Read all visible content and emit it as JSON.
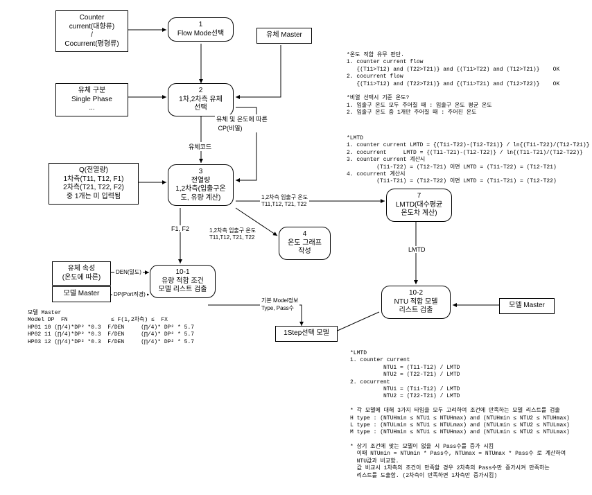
{
  "nodes": {
    "box_input_flow": "Counter\ncurrent(대향류)\n/\nCocurrent(평형류)",
    "n1": "1\nFlow Mode선택",
    "box_master_fluid": "유체 Master",
    "box_input_phase": "유체 구분\nSingle Phase\n...",
    "n2": "2\n1차,2차측 유체\n선택",
    "box_input_Q": "Q(전열량)\n1차측(T11, T12, F1)\n2차측(T21, T22, F2)\n중 1개는 미 입력됨",
    "n3": "3\n전열량\n1,2차측(입출구온\n도, 유량 계산)",
    "n4": "4\n온도 그래프\n작성",
    "n7": "7\nLMTD(대수평균\n온도차 계산)",
    "box_attr": "유체 속성\n(온도에 따른)",
    "box_model_master_left": "모델 Master",
    "n10_1": "10-1\n유량 적합 조건\n모델 리스트 검출",
    "n10_2": "10-2\nNTU 적합 모델\n리스트 검출",
    "box_model_master_right": "모델 Master",
    "box_1step": "1Step선택 모델"
  },
  "labels": {
    "lbl_cp": "유체 및 온도에 따른\n CP(비열)",
    "lbl_fluidcode": "유체코드",
    "lbl_T_right": "1,2차측 입출구 온도\nT11,T12, T21, T22",
    "lbl_F1F2": "F1, F2",
    "lbl_T_down": "1,2차측 입출구 온도\nT11,T12, T21, T22",
    "lbl_LMTD": "LMTD",
    "lbl_DEN": "DEN(밀도)",
    "lbl_DP": "DP(Port직경)",
    "lbl_modeltype": "기본 Model정보\nType, Pass수"
  },
  "annotations": {
    "a_flow": "*온도 적합 유무 판단.\n1. counter current flow\n   {(T11>T12) and (T22>T21)} and {(T11>T22) and (T12>T21)}    OK\n2. cocurrent flow\n   {(T11>T12) and (T22>T21)} and {(T11>T21) and (T12>T22)}    OK\n\n*비열 선택시 기준 온도?\n1. 입출구 온도 모두 주어질 때 : 입출구 온도 평균 온도\n2. 입출구 온도 중 1개만 주어질 때 : 주어진 온도",
    "a_lmtd": "*LMTD\n1. counter current LMTD = {(T11-T22)-(T12-T21)} / ln{(T11-T22)/(T12-T21)}\n2. cocurrent     LMTD = {(T11-T21)-(T12-T22)} / ln{(T11-T21)/(T12-T22)}\n3. counter current 계산시\n         (T11-T22) = (T12-T21) 이면 LMTD = (T11-T22) = (T12-T21)\n4. cocurrent 계산시\n         (T11-T21) = (T12-T22) 이면 LMTD = (T11-T21) = (T12-T22)",
    "a_master": "모델 Master\nModel DP  FN             ≤ F(1,2차측) ≤  FX\nHP01 10 (∏/4)*DP² *0.3  F/DEN     (∏/4)* DP² * 5.7\nHP02 11 (∏/4)*DP² *0.3  F/DEN     (∏/4)* DP² * 5.7\nHP03 12 (∏/4)*DP² *0.3  F/DEN     (∏/4)* DP² * 5.7",
    "a_ntu": "*LMTD\n1. counter current\n          NTU1 = (T11-T12) / LMTD\n          NTU2 = (T22-T21) / LMTD\n2. cocurrent\n          NTU1 = (T11-T12) / LMTD\n          NTU2 = (T22-T21) / LMTD\n\n* 각 모델에 대해 3가지 타입을 모두 고려하여 조건에 만족하는 모델 리스트를 검출\nH type : (NTUHmin ≤ NTU1 ≤ NTUHmax) and (NTUHmin ≤ NTU2 ≤ NTUHmax)\nL type : (NTULmin ≤ NTU1 ≤ NTULmax) and (NTULmin ≤ NTU2 ≤ NTULmax)\nM type : (NTUHmin ≤ NTU1 ≤ NTUHmax) and (NTULmin ≤ NTU2 ≤ NTULmax)\n\n* 상기 조건에 맞는 모델이 없을 시 Pass수를 증가 시킴\n  이때 NTUmin = NTUmin * Pass수, NTUmax = NTUmax * Pass수 로 계산하여\n  NTU값과 비교함.\n  값 비교시 1차측의 조건이 만족할 경우 2차측의 Pass수만 증가시켜 만족하는\n  리스트를 도출함. (2차측이 만족하면 1차측만 증가시킴)"
  },
  "style": {
    "bg": "#ffffff",
    "fg": "#000000",
    "font_small": 8,
    "font_node": 10
  }
}
